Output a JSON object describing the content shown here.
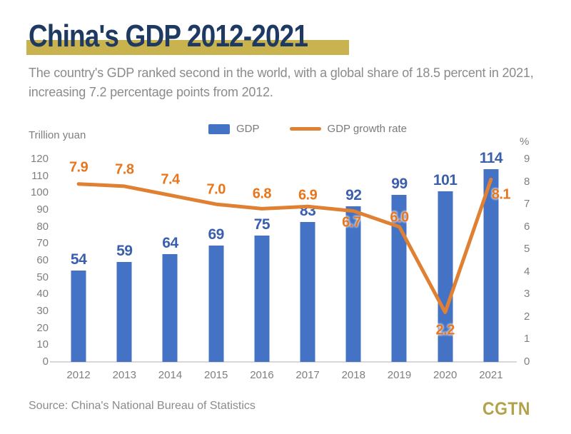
{
  "header": {
    "title": "China's GDP 2012-2021",
    "subtitle_line1": "The country's GDP ranked second in the world, with a global share of 18.5 percent in 2021,",
    "subtitle_line2": "increasing 7.2 percentage points from 2012."
  },
  "legend": {
    "gdp_label": "GDP",
    "growth_label": "GDP growth rate"
  },
  "axes": {
    "left_title": "Trillion yuan",
    "right_title": "%"
  },
  "chart_data": {
    "type": "bar",
    "categories": [
      "2012",
      "2013",
      "2014",
      "2015",
      "2016",
      "2017",
      "2018",
      "2019",
      "2020",
      "2021"
    ],
    "series": [
      {
        "name": "GDP",
        "type": "bar",
        "unit": "trillion yuan",
        "values": [
          54,
          59,
          64,
          69,
          75,
          83,
          92,
          99,
          101,
          114
        ],
        "labels": [
          "54",
          "59",
          "64",
          "69",
          "75",
          "83",
          "92",
          "99",
          "101",
          "114"
        ]
      },
      {
        "name": "GDP growth rate",
        "type": "line",
        "unit": "%",
        "values": [
          7.9,
          7.8,
          7.4,
          7.0,
          6.8,
          6.9,
          6.7,
          6.0,
          2.2,
          8.1
        ],
        "labels": [
          "7.9",
          "7.8",
          "7.4",
          "7.0",
          "6.8",
          "6.9",
          "6.7",
          "6.0",
          "2.2",
          "8.1"
        ]
      }
    ],
    "left_axis": {
      "title": "Trillion yuan",
      "min": 0,
      "max": 120,
      "step": 10
    },
    "right_axis": {
      "title": "%",
      "min": 0,
      "max": 9,
      "step": 1
    },
    "grid": false,
    "legend_position": "top-center",
    "title": "China's GDP 2012-2021"
  },
  "footer": {
    "source": "Source: China's National Bureau of Statistics",
    "logo": "CGTN"
  },
  "colors": {
    "bar": "#4472c4",
    "bar_label": "#3a5fad",
    "line": "#df8033",
    "line_label": "#e8761c",
    "title": "#1e3a63",
    "highlight": "#c8b34f",
    "logo": "#b2a34b",
    "text_gray": "#8b8b8b",
    "axis_gray": "#7f7f7f",
    "axis_line": "#d8d8d8"
  }
}
